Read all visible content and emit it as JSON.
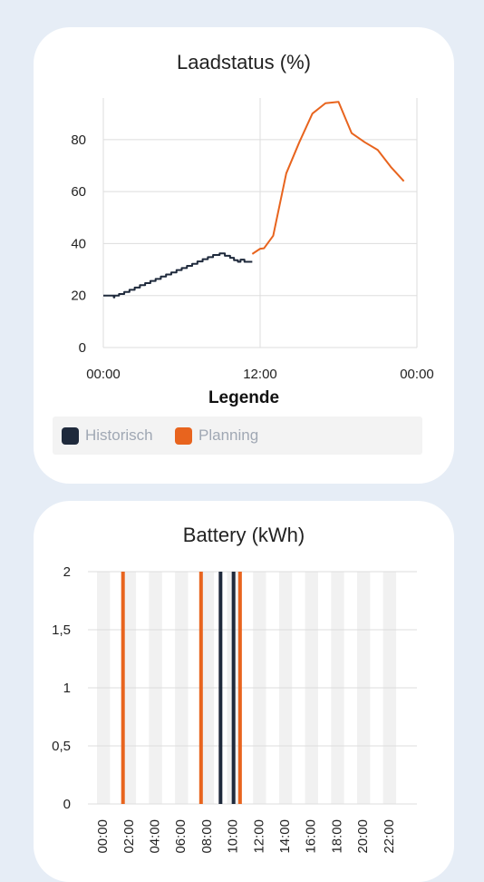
{
  "colors": {
    "historisch": "#1f2a3c",
    "planning": "#e8641e",
    "grid": "#dddddd",
    "band": "#f1f1f1"
  },
  "charts": [
    {
      "title": "Laadstatus (%)",
      "chart_data": {
        "type": "line",
        "title": "Laadstatus (%)",
        "xlabel": "",
        "ylabel": "",
        "x_unit": "hour",
        "xlim": [
          0,
          24
        ],
        "ylim": [
          0,
          96
        ],
        "y_ticks": [
          0,
          20,
          40,
          60,
          80
        ],
        "x_ticks": [
          0,
          12,
          24
        ],
        "x_tick_labels": [
          "00:00",
          "12:00",
          "00:00"
        ],
        "legend": {
          "title": "Legende",
          "placement": "bottom",
          "items": [
            {
              "name": "Historisch",
              "color": "#1f2a3c"
            },
            {
              "name": "Planning",
              "color": "#e8641e"
            }
          ]
        },
        "series": [
          {
            "name": "Historisch",
            "style": "step",
            "points": [
              [
                0,
                20
              ],
              [
                0.5,
                20
              ],
              [
                0.8,
                19.3
              ],
              [
                0.85,
                20
              ],
              [
                1.2,
                20.6
              ],
              [
                1.6,
                21.4
              ],
              [
                2.0,
                22.2
              ],
              [
                2.4,
                23.1
              ],
              [
                2.8,
                24.0
              ],
              [
                3.2,
                24.8
              ],
              [
                3.6,
                25.6
              ],
              [
                4.0,
                26.4
              ],
              [
                4.4,
                27.3
              ],
              [
                4.8,
                28.1
              ],
              [
                5.2,
                28.9
              ],
              [
                5.6,
                29.8
              ],
              [
                6.0,
                30.6
              ],
              [
                6.4,
                31.4
              ],
              [
                6.8,
                32.2
              ],
              [
                7.2,
                33.1
              ],
              [
                7.6,
                34.0
              ],
              [
                8.0,
                34.8
              ],
              [
                8.4,
                35.6
              ],
              [
                8.9,
                36.2
              ],
              [
                9.3,
                35.3
              ],
              [
                9.7,
                34.5
              ],
              [
                10.0,
                33.6
              ],
              [
                10.3,
                33.0
              ],
              [
                10.5,
                33.8
              ],
              [
                10.8,
                33.0
              ],
              [
                11.4,
                33.0
              ]
            ]
          },
          {
            "name": "Planning",
            "style": "line",
            "points": [
              [
                11.4,
                36
              ],
              [
                12.0,
                38
              ],
              [
                12.3,
                38.2
              ],
              [
                13.0,
                43
              ],
              [
                14.0,
                67
              ],
              [
                15.0,
                79
              ],
              [
                16.0,
                90
              ],
              [
                17.0,
                94
              ],
              [
                18.0,
                94.5
              ],
              [
                19.0,
                82.5
              ],
              [
                20.0,
                79
              ],
              [
                21.0,
                76
              ],
              [
                22.0,
                69.5
              ],
              [
                23.0,
                64
              ]
            ]
          }
        ]
      }
    },
    {
      "title": "Battery (kWh)",
      "chart_data": {
        "type": "bar",
        "title": "Battery (kWh)",
        "xlabel": "",
        "ylabel": "",
        "ylim": [
          0,
          2
        ],
        "y_ticks": [
          0,
          0.5,
          1,
          1.5,
          2
        ],
        "y_tick_labels": [
          "0",
          "0,5",
          "1",
          "1,5",
          "2"
        ],
        "x_tick_labels": [
          "00:00",
          "02:00",
          "04:00",
          "06:00",
          "08:00",
          "10:00",
          "12:00",
          "14:00",
          "16:00",
          "18:00",
          "20:00",
          "22:00"
        ],
        "bars": [
          {
            "hour": 2,
            "value": 2,
            "series": "Planning"
          },
          {
            "hour": 8,
            "value": 2,
            "series": "Planning"
          },
          {
            "hour": 9.5,
            "value": 2,
            "series": "Historisch"
          },
          {
            "hour": 10.5,
            "value": 2,
            "series": "Historisch"
          },
          {
            "hour": 11,
            "value": 2,
            "series": "Planning"
          }
        ]
      }
    }
  ]
}
